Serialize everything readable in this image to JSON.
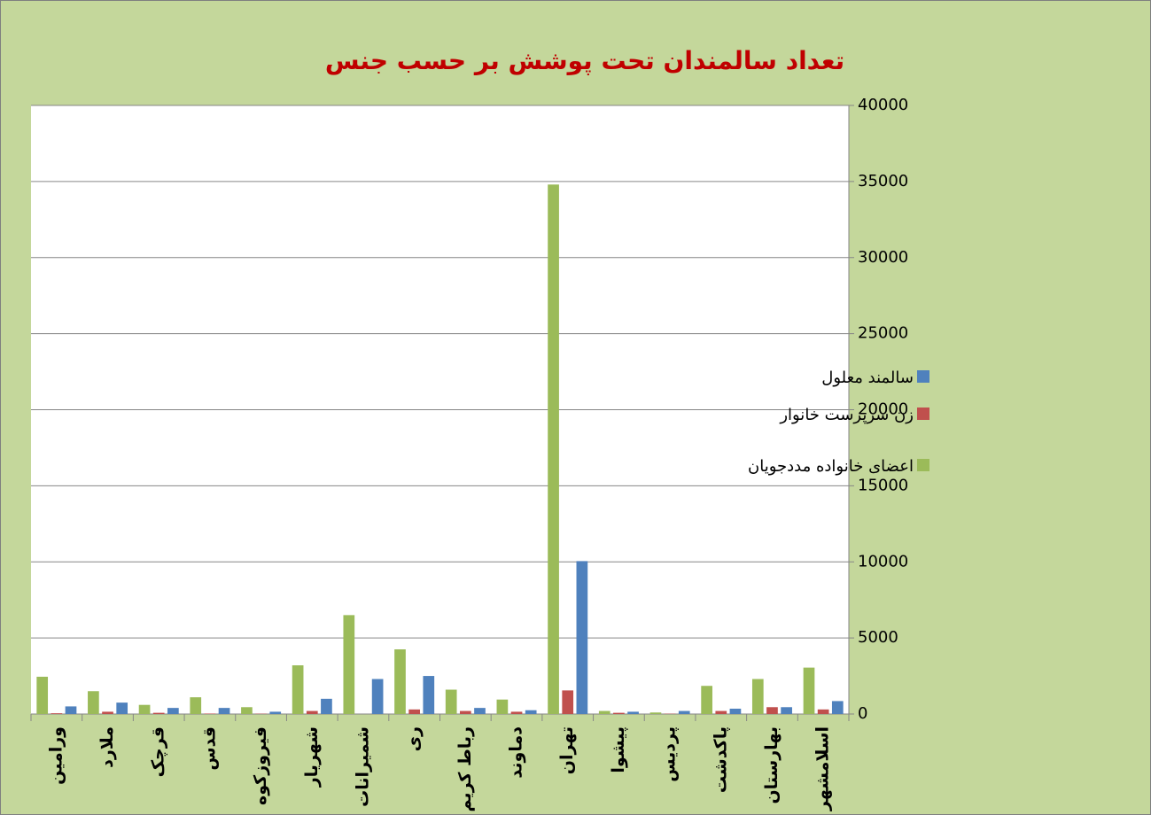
{
  "chart_data": {
    "type": "bar",
    "title": "تعداد سالمندان تحت پوشش بر حسب جنس",
    "categories": [
      "ورامین",
      "ملارد",
      "قرچک",
      "قدس",
      "فیروزکوه",
      "شهریار",
      "شمیرانات",
      "ری",
      "رباط کریم",
      "دماوند",
      "تهران",
      "پیشوا",
      "پردیس",
      "پاکدشت",
      "بهارستان",
      "اسلامشهر"
    ],
    "series": [
      {
        "name": "اعضای خانواده مددجویان",
        "color": "#9bbb59",
        "values": [
          2450,
          1500,
          600,
          1100,
          450,
          3200,
          6500,
          4250,
          1600,
          950,
          34800,
          200,
          100,
          1850,
          2300,
          3050
        ]
      },
      {
        "name": "زن سرپرست خانوار",
        "color": "#c0504d",
        "values": [
          50,
          150,
          80,
          30,
          20,
          200,
          0,
          300,
          200,
          150,
          1550,
          80,
          20,
          200,
          450,
          300
        ]
      },
      {
        "name": "سالمند معلول",
        "color": "#4f81bd",
        "values": [
          500,
          750,
          400,
          400,
          150,
          1000,
          2300,
          2500,
          400,
          250,
          10050,
          150,
          200,
          350,
          450,
          850
        ]
      }
    ],
    "ylim": [
      0,
      40000
    ],
    "yticks": [
      0,
      5000,
      10000,
      15000,
      20000,
      25000,
      30000,
      35000,
      40000
    ],
    "grid": true,
    "legend": "right",
    "yaxis_side": "right"
  }
}
